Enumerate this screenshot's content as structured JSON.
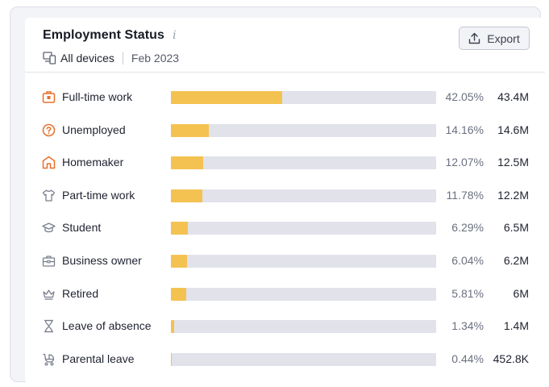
{
  "widget": {
    "title": "Employment Status",
    "info_icon": "i",
    "device_filter": "All devices",
    "date": "Feb 2023",
    "export_label": "Export"
  },
  "colors": {
    "bar_fill": "#f4c250",
    "bar_track": "#e1e2ea",
    "icon_orange": "#e8702a",
    "icon_gray": "#7a7f8e"
  },
  "rows": [
    {
      "label": "Full-time work",
      "icon": "briefcase-icon",
      "percent": "42.05%",
      "value": "43.4M",
      "fraction": 0.4205
    },
    {
      "label": "Unemployed",
      "icon": "question-icon",
      "percent": "14.16%",
      "value": "14.6M",
      "fraction": 0.1416
    },
    {
      "label": "Homemaker",
      "icon": "home-icon",
      "percent": "12.07%",
      "value": "12.5M",
      "fraction": 0.1207
    },
    {
      "label": "Part-time work",
      "icon": "shirt-icon",
      "percent": "11.78%",
      "value": "12.2M",
      "fraction": 0.1178
    },
    {
      "label": "Student",
      "icon": "graduation-icon",
      "percent": "6.29%",
      "value": "6.5M",
      "fraction": 0.0629
    },
    {
      "label": "Business owner",
      "icon": "toolbox-icon",
      "percent": "6.04%",
      "value": "6.2M",
      "fraction": 0.0604
    },
    {
      "label": "Retired",
      "icon": "crown-icon",
      "percent": "5.81%",
      "value": "6M",
      "fraction": 0.0581
    },
    {
      "label": "Leave of absence",
      "icon": "hourglass-icon",
      "percent": "1.34%",
      "value": "1.4M",
      "fraction": 0.0134
    },
    {
      "label": "Parental leave",
      "icon": "stroller-icon",
      "percent": "0.44%",
      "value": "452.8K",
      "fraction": 0.0044
    }
  ]
}
